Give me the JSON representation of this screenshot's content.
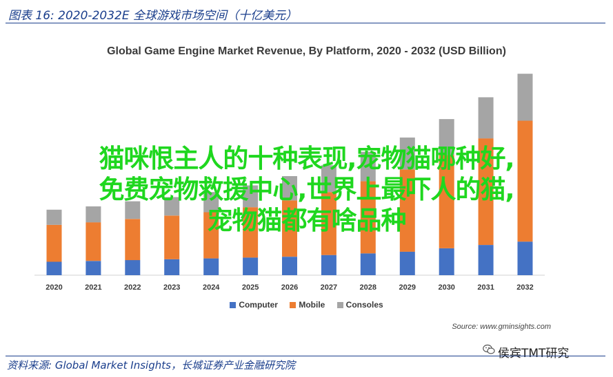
{
  "figure": {
    "caption": "图表 16:  2020-2032E 全球游戏市场空间（十亿美元）",
    "footnote": "资料来源: Global Market Insights，长城证券产业金融研究院"
  },
  "overlay": {
    "line1": "猫咪恨主人的十种表现,宠物猫哪种好,",
    "line2": "免费宠物救援中心,世界上最吓人的猫,",
    "line3": "宠物猫都有啥品种"
  },
  "wechat": {
    "label": "侯宾TMT研究",
    "icon": "wechat-icon"
  },
  "chart_data": {
    "type": "bar",
    "stacked": true,
    "title": "Global Game Engine Market Revenue, By Platform, 2020 - 2032 (USD Billion)",
    "source": "Source: www.gminsights.com",
    "categories": [
      "2020",
      "2021",
      "2022",
      "2023",
      "2024",
      "2025",
      "2026",
      "2027",
      "2028",
      "2029",
      "2030",
      "2031",
      "2032"
    ],
    "series": [
      {
        "name": "Computer",
        "color": "#4472c4",
        "values": [
          0.8,
          0.85,
          0.9,
          0.95,
          1.0,
          1.05,
          1.1,
          1.2,
          1.3,
          1.4,
          1.6,
          1.8,
          2.0
        ]
      },
      {
        "name": "Mobile",
        "color": "#ed7d31",
        "values": [
          2.2,
          2.3,
          2.45,
          2.6,
          2.75,
          3.0,
          3.35,
          3.75,
          4.3,
          4.9,
          5.55,
          6.35,
          7.2
        ]
      },
      {
        "name": "Consoles",
        "color": "#a5a5a5",
        "values": [
          0.9,
          0.95,
          1.05,
          1.1,
          1.2,
          1.3,
          1.45,
          1.6,
          1.75,
          1.9,
          2.15,
          2.45,
          2.8
        ]
      }
    ],
    "ylim": [
      0,
      12.5
    ],
    "legend": "bottom",
    "grid": false
  }
}
